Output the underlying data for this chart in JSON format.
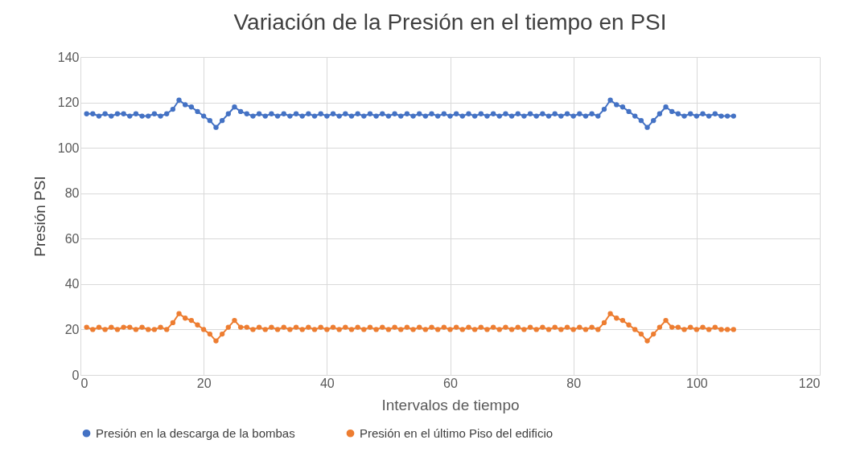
{
  "chart_data": {
    "type": "line",
    "title": "Variación de la Presión en el tiempo en PSI",
    "xlabel": "Intervalos de tiempo",
    "ylabel": "Presión PSI",
    "x": [
      1,
      2,
      3,
      4,
      5,
      6,
      7,
      8,
      9,
      10,
      11,
      12,
      13,
      14,
      15,
      16,
      17,
      18,
      19,
      20,
      21,
      22,
      23,
      24,
      25,
      26,
      27,
      28,
      29,
      30,
      31,
      32,
      33,
      34,
      35,
      36,
      37,
      38,
      39,
      40,
      41,
      42,
      43,
      44,
      45,
      46,
      47,
      48,
      49,
      50,
      51,
      52,
      53,
      54,
      55,
      56,
      57,
      58,
      59,
      60,
      61,
      62,
      63,
      64,
      65,
      66,
      67,
      68,
      69,
      70,
      71,
      72,
      73,
      74,
      75,
      76,
      77,
      78,
      79,
      80,
      81,
      82,
      83,
      84,
      85,
      86,
      87,
      88,
      89,
      90,
      91,
      92,
      93,
      94,
      95,
      96,
      97,
      98,
      99,
      100,
      101,
      102,
      103,
      104,
      105,
      106
    ],
    "series": [
      {
        "name": "Presión en la descarga de la bombas",
        "color": "#4472c4",
        "values": [
          115,
          115,
          114,
          115,
          114,
          115,
          115,
          114,
          115,
          114,
          114,
          115,
          114,
          115,
          117,
          121,
          119,
          118,
          116,
          114,
          112,
          109,
          112,
          115,
          118,
          116,
          115,
          114,
          115,
          114,
          115,
          114,
          115,
          114,
          115,
          114,
          115,
          114,
          115,
          114,
          115,
          114,
          115,
          114,
          115,
          114,
          115,
          114,
          115,
          114,
          115,
          114,
          115,
          114,
          115,
          114,
          115,
          114,
          115,
          114,
          115,
          114,
          115,
          114,
          115,
          114,
          115,
          114,
          115,
          114,
          115,
          114,
          115,
          114,
          115,
          114,
          115,
          114,
          115,
          114,
          115,
          114,
          115,
          114,
          117,
          121,
          119,
          118,
          116,
          114,
          112,
          109,
          112,
          115,
          118,
          116,
          115,
          114,
          115,
          114,
          115,
          114,
          115,
          114,
          114,
          114
        ]
      },
      {
        "name": "Presión en el último Piso del edificio",
        "color": "#ed7d31",
        "values": [
          21,
          20,
          21,
          20,
          21,
          20,
          21,
          21,
          20,
          21,
          20,
          20,
          21,
          20,
          23,
          27,
          25,
          24,
          22,
          20,
          18,
          15,
          18,
          21,
          24,
          21,
          21,
          20,
          21,
          20,
          21,
          20,
          21,
          20,
          21,
          20,
          21,
          20,
          21,
          20,
          21,
          20,
          21,
          20,
          21,
          20,
          21,
          20,
          21,
          20,
          21,
          20,
          21,
          20,
          21,
          20,
          21,
          20,
          21,
          20,
          21,
          20,
          21,
          20,
          21,
          20,
          21,
          20,
          21,
          20,
          21,
          20,
          21,
          20,
          21,
          20,
          21,
          20,
          21,
          20,
          21,
          20,
          21,
          20,
          23,
          27,
          25,
          24,
          22,
          20,
          18,
          15,
          18,
          21,
          24,
          21,
          21,
          20,
          21,
          20,
          21,
          20,
          21,
          20,
          20,
          20
        ]
      }
    ],
    "xlim": [
      0,
      120
    ],
    "xticks": [
      0,
      20,
      40,
      60,
      80,
      100,
      120
    ],
    "ylim": [
      0,
      140
    ],
    "yticks": [
      0,
      20,
      40,
      60,
      80,
      100,
      120,
      140
    ],
    "grid": true,
    "legend": "bottom",
    "marker": "circle",
    "line_style": "solid"
  }
}
